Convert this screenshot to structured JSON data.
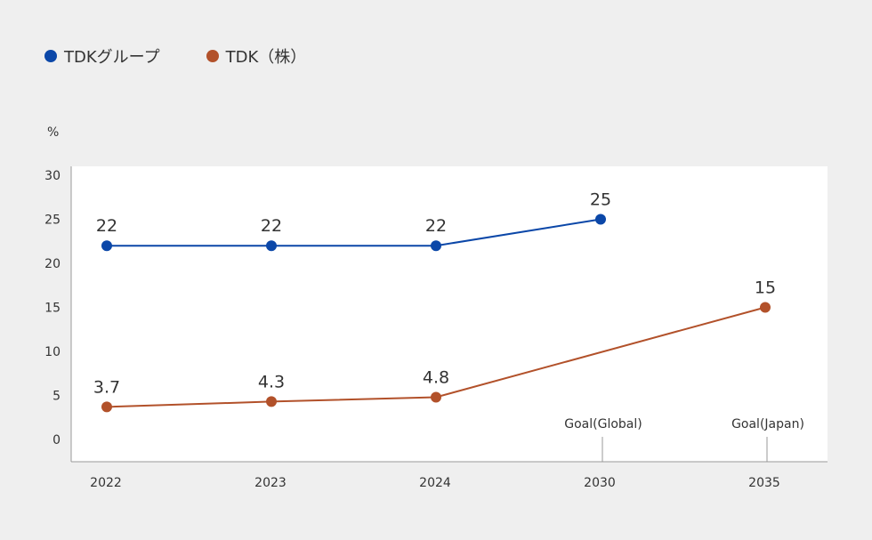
{
  "colors": {
    "background": "#efefef",
    "plot_bg": "#ffffff",
    "blue": "#0b47a8",
    "orange": "#b2512a",
    "axis": "#999999"
  },
  "legend": {
    "items": [
      {
        "label": "TDKグループ",
        "color": "#0b47a8"
      },
      {
        "label": "TDK（株）",
        "color": "#b2512a"
      }
    ]
  },
  "chart_data": {
    "type": "line",
    "ylabel": "%",
    "ylim": [
      0,
      30
    ],
    "yticks": [
      "30",
      "25",
      "20",
      "15",
      "10",
      "5",
      "0"
    ],
    "categories": [
      "2022",
      "2023",
      "2024",
      "2030",
      "2035"
    ],
    "annotations": [
      {
        "category": "2030",
        "text": "Goal(Global)"
      },
      {
        "category": "2035",
        "text": "Goal(Japan)"
      }
    ],
    "series": [
      {
        "name": "TDKグループ",
        "color": "#0b47a8",
        "points": [
          {
            "x": "2022",
            "y": 22,
            "label": "22"
          },
          {
            "x": "2023",
            "y": 22,
            "label": "22"
          },
          {
            "x": "2024",
            "y": 22,
            "label": "22"
          },
          {
            "x": "2030",
            "y": 25,
            "label": "25"
          }
        ]
      },
      {
        "name": "TDK（株）",
        "color": "#b2512a",
        "points": [
          {
            "x": "2022",
            "y": 3.7,
            "label": "3.7"
          },
          {
            "x": "2023",
            "y": 4.3,
            "label": "4.3"
          },
          {
            "x": "2024",
            "y": 4.8,
            "label": "4.8"
          },
          {
            "x": "2035",
            "y": 15,
            "label": "15"
          }
        ]
      }
    ],
    "grid": false,
    "legend_position": "top-left"
  }
}
